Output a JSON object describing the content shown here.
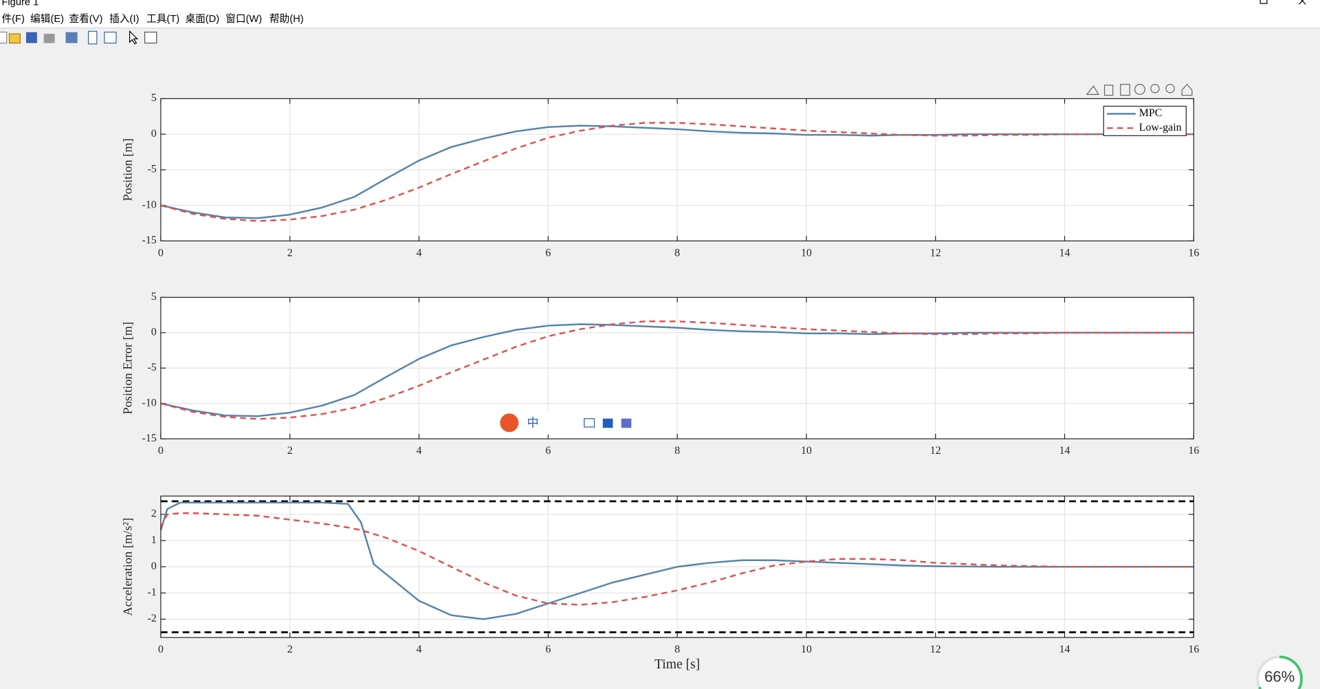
{
  "window": {
    "title": "Figure 1",
    "menu": [
      "件(F)",
      "编辑(E)",
      "查看(V)",
      "插入(I)",
      "工具(T)",
      "桌面(D)",
      "窗口(W)",
      "帮助(H)"
    ],
    "ime": "中",
    "status": "66%"
  },
  "chart_data": [
    {
      "type": "line",
      "ylabel": "Position [m]",
      "x": [
        0,
        0.5,
        1,
        1.5,
        2,
        2.5,
        3,
        3.5,
        4,
        4.5,
        5,
        5.5,
        6,
        6.5,
        7,
        7.5,
        8,
        8.5,
        9,
        9.5,
        10,
        10.5,
        11,
        11.5,
        12,
        12.5,
        13,
        13.5,
        14,
        14.5,
        15,
        15.5,
        16
      ],
      "series": [
        {
          "name": "MPC",
          "color": "#5583ad",
          "linestyle": "solid",
          "values": [
            -10,
            -11,
            -11.7,
            -11.8,
            -11.3,
            -10.3,
            -8.8,
            -6.2,
            -3.7,
            -1.8,
            -0.6,
            0.4,
            1.0,
            1.2,
            1.1,
            0.9,
            0.7,
            0.4,
            0.2,
            0.1,
            -0.1,
            -0.1,
            -0.2,
            -0.1,
            -0.1,
            0,
            0,
            0,
            0,
            0,
            0,
            0,
            0
          ]
        },
        {
          "name": "Low-gain",
          "color": "#d9534f",
          "linestyle": "dashed",
          "values": [
            -10,
            -11.2,
            -11.9,
            -12.2,
            -12,
            -11.5,
            -10.6,
            -9.2,
            -7.5,
            -5.6,
            -3.8,
            -2,
            -0.5,
            0.5,
            1.2,
            1.6,
            1.6,
            1.4,
            1.1,
            0.8,
            0.5,
            0.3,
            0.1,
            -0.1,
            -0.2,
            -0.2,
            -0.1,
            -0.1,
            0,
            0,
            0,
            0,
            0
          ]
        }
      ],
      "xlim": [
        0,
        16
      ],
      "xticks": [
        0,
        2,
        4,
        6,
        8,
        10,
        12,
        14,
        16
      ],
      "ylim": [
        -15,
        5
      ],
      "yticks": [
        -15,
        -10,
        -5,
        0,
        5
      ],
      "grid": true,
      "legend": "upper right"
    },
    {
      "type": "line",
      "ylabel": "Position Error [m]",
      "x": [
        0,
        0.5,
        1,
        1.5,
        2,
        2.5,
        3,
        3.5,
        4,
        4.5,
        5,
        5.5,
        6,
        6.5,
        7,
        7.5,
        8,
        8.5,
        9,
        9.5,
        10,
        10.5,
        11,
        11.5,
        12,
        12.5,
        13,
        13.5,
        14,
        14.5,
        15,
        15.5,
        16
      ],
      "series": [
        {
          "name": "MPC",
          "color": "#5583ad",
          "linestyle": "solid",
          "values": [
            -10,
            -11,
            -11.7,
            -11.8,
            -11.3,
            -10.3,
            -8.8,
            -6.2,
            -3.7,
            -1.8,
            -0.6,
            0.4,
            1.0,
            1.2,
            1.1,
            0.9,
            0.7,
            0.4,
            0.2,
            0.1,
            -0.1,
            -0.1,
            -0.2,
            -0.1,
            -0.1,
            0,
            0,
            0,
            0,
            0,
            0,
            0,
            0
          ]
        },
        {
          "name": "Low-gain",
          "color": "#d9534f",
          "linestyle": "dashed",
          "values": [
            -10,
            -11.2,
            -11.9,
            -12.2,
            -12,
            -11.5,
            -10.6,
            -9.2,
            -7.5,
            -5.6,
            -3.8,
            -2,
            -0.5,
            0.5,
            1.2,
            1.6,
            1.6,
            1.4,
            1.1,
            0.8,
            0.5,
            0.3,
            0.1,
            -0.1,
            -0.2,
            -0.2,
            -0.1,
            -0.1,
            0,
            0,
            0,
            0,
            0
          ]
        }
      ],
      "xlim": [
        0,
        16
      ],
      "xticks": [
        0,
        2,
        4,
        6,
        8,
        10,
        12,
        14,
        16
      ],
      "ylim": [
        -15,
        5
      ],
      "yticks": [
        -15,
        -10,
        -5,
        0,
        5
      ],
      "grid": true
    },
    {
      "type": "line",
      "ylabel": "Acceleration [m/s²]",
      "xlabel": "Time [s]",
      "x": [
        0,
        0.1,
        0.3,
        0.5,
        1,
        1.5,
        2,
        2.5,
        2.9,
        3.1,
        3.3,
        3.5,
        4,
        4.5,
        5,
        5.5,
        6,
        6.5,
        7,
        7.5,
        8,
        8.5,
        9,
        9.5,
        10,
        10.5,
        11,
        11.5,
        12,
        13,
        14,
        15,
        16
      ],
      "series": [
        {
          "name": "MPC",
          "color": "#5583ad",
          "linestyle": "solid",
          "values": [
            1.4,
            2.2,
            2.45,
            2.45,
            2.45,
            2.45,
            2.45,
            2.45,
            2.4,
            1.7,
            0.1,
            -0.3,
            -1.3,
            -1.85,
            -2.0,
            -1.8,
            -1.4,
            -1.0,
            -0.6,
            -0.3,
            0,
            0.15,
            0.25,
            0.25,
            0.2,
            0.15,
            0.1,
            0.05,
            0.02,
            0,
            0,
            0,
            0
          ]
        },
        {
          "name": "Low-gain",
          "color": "#d9534f",
          "linestyle": "dashed",
          "values": [
            1.5,
            2.0,
            2.05,
            2.05,
            2.0,
            1.95,
            1.8,
            1.65,
            1.5,
            1.4,
            1.25,
            1.1,
            0.6,
            0,
            -0.6,
            -1.1,
            -1.4,
            -1.45,
            -1.35,
            -1.15,
            -0.9,
            -0.6,
            -0.25,
            0.05,
            0.2,
            0.3,
            0.3,
            0.25,
            0.15,
            0.05,
            0,
            0,
            0
          ]
        }
      ],
      "bounds": [
        2.5,
        -2.5
      ],
      "bounds_color": "#000000",
      "xlim": [
        0,
        16
      ],
      "xticks": [
        0,
        2,
        4,
        6,
        8,
        10,
        12,
        14,
        16
      ],
      "ylim": [
        -2.7,
        2.7
      ],
      "yticks": [
        -2,
        -1,
        0,
        1,
        2
      ],
      "grid": true
    }
  ]
}
